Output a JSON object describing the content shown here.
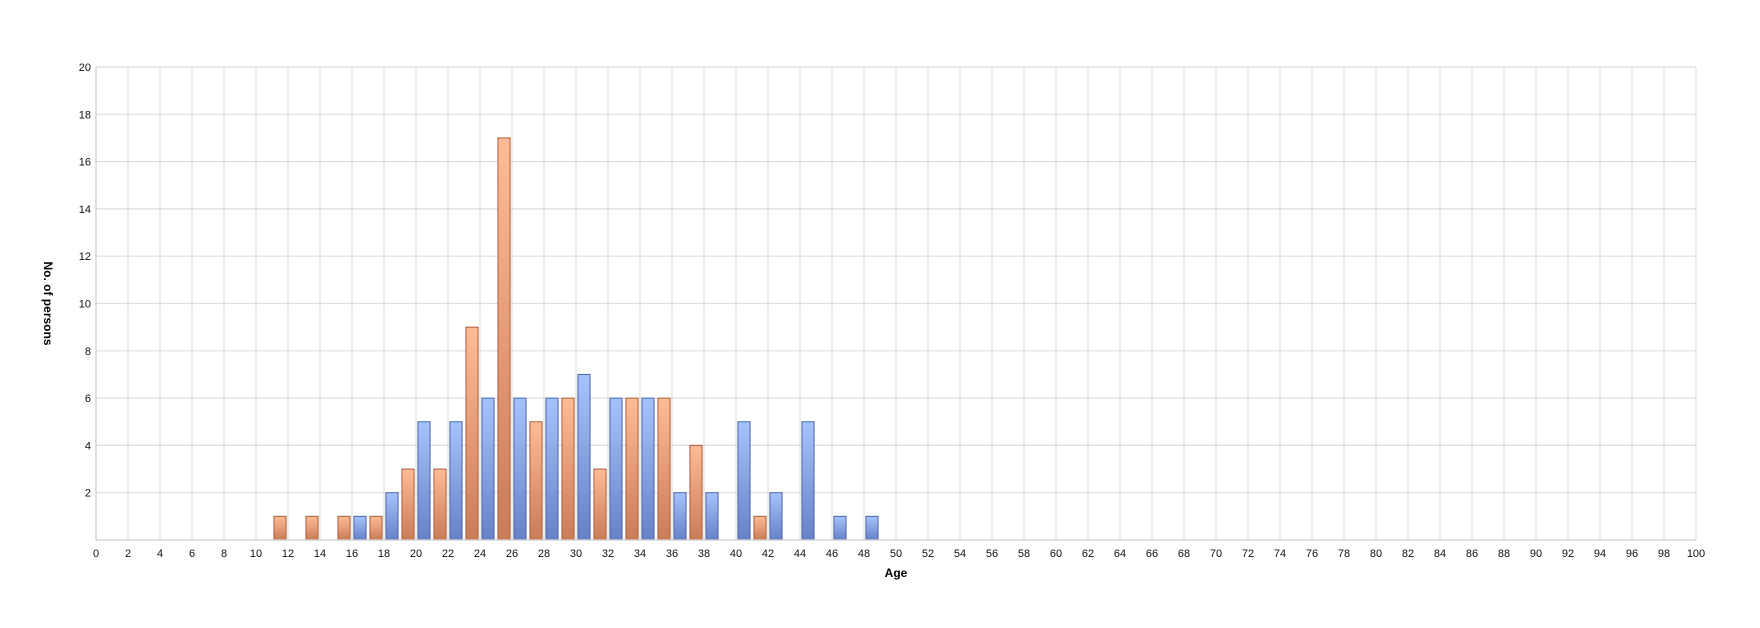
{
  "chart_data": {
    "type": "bar",
    "title": "",
    "xlabel": "Age",
    "ylabel": "No. of persons",
    "xlim": [
      0,
      100
    ],
    "ylim": [
      0,
      20
    ],
    "x_ticks": [
      0,
      2,
      4,
      6,
      8,
      10,
      12,
      14,
      16,
      18,
      20,
      22,
      24,
      26,
      28,
      30,
      32,
      34,
      36,
      38,
      40,
      42,
      44,
      46,
      48,
      50,
      52,
      54,
      56,
      58,
      60,
      62,
      64,
      66,
      68,
      70,
      72,
      74,
      76,
      78,
      80,
      82,
      84,
      86,
      88,
      90,
      92,
      94,
      96,
      98,
      100
    ],
    "y_ticks": [
      2,
      4,
      6,
      8,
      10,
      12,
      14,
      16,
      18,
      20
    ],
    "grid": true,
    "series": [
      {
        "color": "#f4a582",
        "points": [
          {
            "x": 11.5,
            "y": 1
          },
          {
            "x": 13.5,
            "y": 1
          },
          {
            "x": 15.5,
            "y": 1
          },
          {
            "x": 17.5,
            "y": 1
          },
          {
            "x": 19.5,
            "y": 3
          },
          {
            "x": 21.5,
            "y": 3
          },
          {
            "x": 23.5,
            "y": 9
          },
          {
            "x": 25.5,
            "y": 17
          },
          {
            "x": 27.5,
            "y": 5
          },
          {
            "x": 29.5,
            "y": 6
          },
          {
            "x": 31.5,
            "y": 3
          },
          {
            "x": 33.5,
            "y": 6
          },
          {
            "x": 35.5,
            "y": 6
          },
          {
            "x": 37.5,
            "y": 4
          },
          {
            "x": 41.5,
            "y": 1
          }
        ]
      },
      {
        "color": "#8fadee",
        "points": [
          {
            "x": 16.5,
            "y": 1
          },
          {
            "x": 18.5,
            "y": 2
          },
          {
            "x": 20.5,
            "y": 5
          },
          {
            "x": 22.5,
            "y": 5
          },
          {
            "x": 24.5,
            "y": 6
          },
          {
            "x": 26.5,
            "y": 6
          },
          {
            "x": 28.5,
            "y": 6
          },
          {
            "x": 30.5,
            "y": 7
          },
          {
            "x": 32.5,
            "y": 6
          },
          {
            "x": 34.5,
            "y": 6
          },
          {
            "x": 36.5,
            "y": 2
          },
          {
            "x": 38.5,
            "y": 2
          },
          {
            "x": 40.5,
            "y": 5
          },
          {
            "x": 42.5,
            "y": 2
          },
          {
            "x": 44.5,
            "y": 5
          },
          {
            "x": 46.5,
            "y": 1
          },
          {
            "x": 48.5,
            "y": 1
          }
        ]
      }
    ]
  }
}
